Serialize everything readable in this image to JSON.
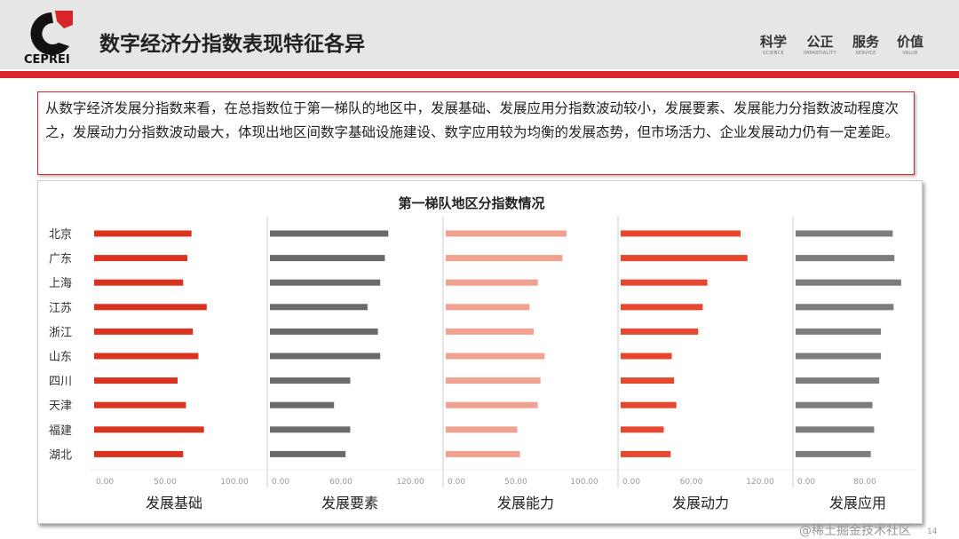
{
  "header": {
    "logo_text": "CEPREI",
    "title": "数字经济分指数表现特征各异",
    "motto": [
      {
        "zh": "科学",
        "en": "SCIENCE"
      },
      {
        "zh": "公正",
        "en": "IMPARTIALITY"
      },
      {
        "zh": "服务",
        "en": "SERVICE"
      },
      {
        "zh": "价值",
        "en": "VALUE"
      }
    ]
  },
  "description": "从数字经济发展分指数来看，在总指数位于第一梯队的地区中，发展基础、发展应用分指数波动较小，发展要素、发展能力分指数波动程度次之，发展动力分指数波动最大，体现出地区间数字基础设施建设、数字应用较为均衡的发展态势，但市场活力、企业发展动力仍有一定差距。",
  "watermark": "@稀土掘金技术社区",
  "page_number": "14",
  "chart_data": {
    "type": "bar",
    "orientation": "horizontal",
    "title": "第一梯队地区分指数情况",
    "categories": [
      "北京",
      "广东",
      "上海",
      "江苏",
      "浙江",
      "山东",
      "四川",
      "天津",
      "福建",
      "湖北"
    ],
    "series": [
      {
        "name": "发展基础",
        "color": "#d93320",
        "xlim": [
          0,
          100
        ],
        "ticks": [
          "0.00",
          "50.00",
          "100.00"
        ],
        "values": [
          69,
          66,
          63,
          80,
          70,
          74,
          59,
          65,
          78,
          63
        ]
      },
      {
        "name": "发展要素",
        "color": "#6a6a6a",
        "xlim": [
          0,
          120
        ],
        "ticks": [
          "0.00",
          "60.00",
          "120.00"
        ],
        "values": [
          101,
          98,
          94,
          83,
          92,
          94,
          68,
          54,
          68,
          64
        ]
      },
      {
        "name": "发展能力",
        "color": "#f0a190",
        "xlim": [
          0,
          100
        ],
        "ticks": [
          "0.00",
          "50.00",
          "100.00"
        ],
        "values": [
          87,
          84,
          66,
          60,
          63,
          71,
          68,
          66,
          51,
          53
        ]
      },
      {
        "name": "发展动力",
        "color": "#e6482f",
        "xlim": [
          0,
          120
        ],
        "ticks": [
          "0.00",
          "60.00",
          "120.00"
        ],
        "values": [
          103,
          109,
          74,
          70,
          66,
          43,
          45,
          47,
          36,
          42
        ]
      },
      {
        "name": "发展应用",
        "color": "#7d7d7d",
        "xlim": [
          0,
          80
        ],
        "ticks": [
          "0.00",
          "80.00"
        ],
        "values": [
          113,
          115,
          123,
          114,
          99,
          99,
          97,
          89,
          91,
          87
        ]
      }
    ]
  }
}
